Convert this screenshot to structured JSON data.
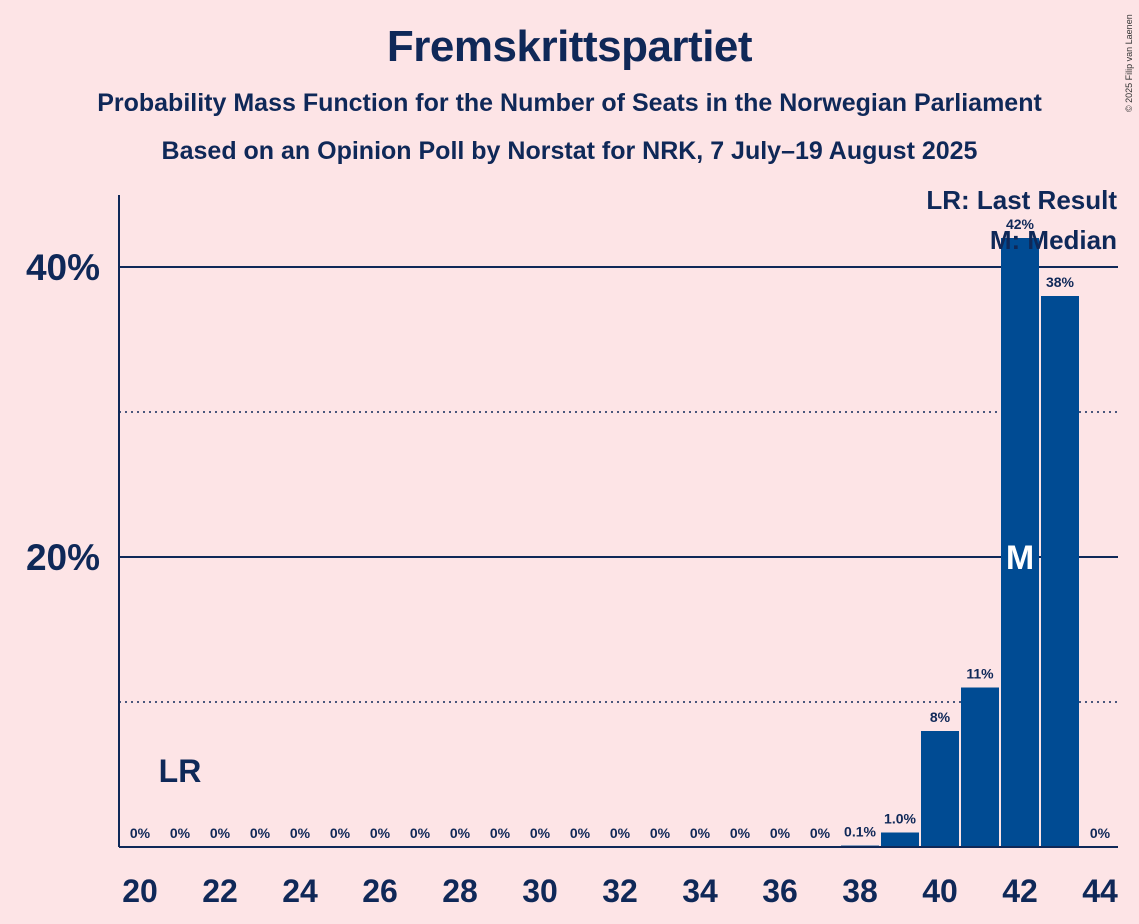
{
  "title": "Fremskrittspartiet",
  "subtitle_1": "Probability Mass Function for the Number of Seats in the Norwegian Parliament",
  "subtitle_2": "Based on an Opinion Poll by Norstat for NRK, 7 July–19 August 2025",
  "copyright": "© 2025 Filip van Laenen",
  "colors": {
    "background": "#fde4e6",
    "bar": "#004b93",
    "text": "#0f2858"
  },
  "chart_data": {
    "type": "bar",
    "x": [
      20,
      21,
      22,
      23,
      24,
      25,
      26,
      27,
      28,
      29,
      30,
      31,
      32,
      33,
      34,
      35,
      36,
      37,
      38,
      39,
      40,
      41,
      42,
      43,
      44
    ],
    "values": [
      0,
      0,
      0,
      0,
      0,
      0,
      0,
      0,
      0,
      0,
      0,
      0,
      0,
      0,
      0,
      0,
      0,
      0,
      0.1,
      1.0,
      8,
      11,
      42,
      38,
      0
    ],
    "value_labels": [
      "0%",
      "0%",
      "0%",
      "0%",
      "0%",
      "0%",
      "0%",
      "0%",
      "0%",
      "0%",
      "0%",
      "0%",
      "0%",
      "0%",
      "0%",
      "0%",
      "0%",
      "0%",
      "0.1%",
      "1.0%",
      "8%",
      "11%",
      "42%",
      "38%",
      "0%"
    ],
    "x_ticks": [
      20,
      22,
      24,
      26,
      28,
      30,
      32,
      34,
      36,
      38,
      40,
      42,
      44
    ],
    "y_ticks": [
      {
        "value": 20,
        "label": "20%"
      },
      {
        "value": 40,
        "label": "40%"
      }
    ],
    "y_minor_gridlines": [
      10,
      30
    ],
    "ylim": [
      0,
      46
    ],
    "last_result": {
      "seat": 21,
      "label": "LR"
    },
    "median": {
      "seat": 42,
      "label": "M"
    },
    "legend": [
      "LR: Last Result",
      "M: Median"
    ],
    "legend_position": "top-right"
  }
}
